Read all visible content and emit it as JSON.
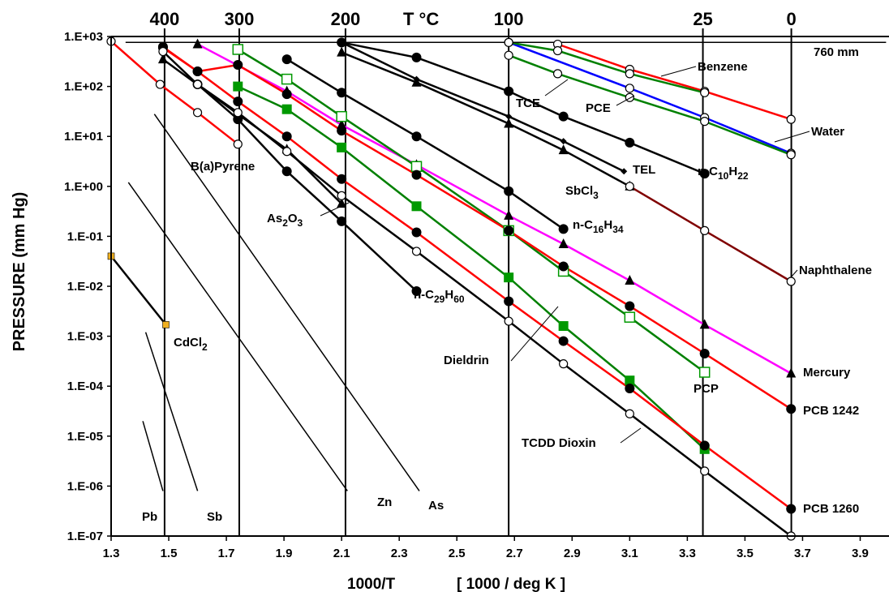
{
  "chart_data": {
    "type": "line",
    "x_ticks": [
      "1.3",
      "1.5",
      "1.7",
      "1.9",
      "2.1",
      "2.3",
      "2.5",
      "2.7",
      "2.9",
      "3.1",
      "3.3",
      "3.5",
      "3.7",
      "3.9"
    ],
    "y_ticks": [
      "1.E+03",
      "1.E+02",
      "1.E+01",
      "1.E+00",
      "1.E-01",
      "1.E-02",
      "1.E-03",
      "1.E-04",
      "1.E-05",
      "1.E-06",
      "1.E-07"
    ],
    "top_ticks": [
      "400",
      "300",
      "200",
      "100",
      "25",
      "0"
    ],
    "top_axis_title": "T °C",
    "xlabel_left": "1000/T",
    "xlabel_right": "[ 1000 / deg K ]",
    "ylabel": "PRESSURE (mm Hg)",
    "xlim": [
      1.3,
      4.0
    ],
    "ylim_log10": [
      -7,
      3
    ],
    "annotations": {
      "760mm": "760 mm",
      "benzene": "Benzene",
      "tce": "TCE",
      "pce": "PCE",
      "water": "Water",
      "tel": "TEL",
      "sbcl3_main": "SbCl",
      "sbcl3_sub": "3",
      "nc10_main": "n-C",
      "nc10_sub1": "10",
      "nc10_h": "H",
      "nc10_sub2": "22",
      "nc16_main": "n-C",
      "nc16_sub1": "16",
      "nc16_h": "H",
      "nc16_sub2": "34",
      "nc29_main": "n-C",
      "nc29_sub1": "29",
      "nc29_h": "H",
      "nc29_sub2": "60",
      "bapyrene": "B(a)Pyrene",
      "as2o3_a": "As",
      "as2o3_sub1": "2",
      "as2o3_b": "O",
      "as2o3_sub2": "3",
      "naphthalene": "Naphthalene",
      "mercury": "Mercury",
      "pcp": "PCP",
      "pcb1242": "PCB 1242",
      "pcb1260": "PCB 1260",
      "dieldrin": "Dieldrin",
      "tcdd": "TCDD Dioxin",
      "cdcl2_main": "CdCl",
      "cdcl2_sub": "2",
      "pb": "Pb",
      "sb": "Sb",
      "zn": "Zn",
      "as": "As"
    },
    "series": [
      {
        "name": "Benzene",
        "color": "#ff0000",
        "marker": "circle-open",
        "x": [
          2.85,
          3.1,
          3.36,
          3.66
        ],
        "y": [
          700,
          220,
          80,
          22
        ]
      },
      {
        "name": "Water",
        "color": "#0000ff",
        "marker": "circle-open",
        "x": [
          2.68,
          3.1,
          3.36,
          3.66
        ],
        "y": [
          760,
          92,
          23.8,
          4.6
        ]
      },
      {
        "name": "TCE",
        "color": "#008000",
        "marker": "circle-open",
        "x": [
          2.68,
          2.85,
          3.1,
          3.36,
          3.66
        ],
        "y": [
          420,
          180,
          60,
          20,
          4.3
        ]
      },
      {
        "name": "PCE",
        "color": "#008000",
        "marker": "circle-open",
        "x": [
          2.68,
          2.85,
          3.1,
          3.36
        ],
        "y": [
          760,
          520,
          180,
          75
        ]
      },
      {
        "name": "n-C10H22",
        "color": "#000000",
        "marker": "circle-filled",
        "x": [
          2.1,
          2.36,
          2.68,
          2.87,
          3.1,
          3.36
        ],
        "y": [
          760,
          380,
          80,
          25,
          7.5,
          1.8
        ]
      },
      {
        "name": "TEL",
        "color": "#000000",
        "marker": "diamond-filled",
        "x": [
          2.1,
          2.36,
          2.68,
          2.87,
          3.08
        ],
        "y": [
          760,
          140,
          25,
          8,
          2
        ]
      },
      {
        "name": "SbCl3",
        "color": "#000000",
        "marker": "triangle-filled",
        "x": [
          2.1,
          2.36,
          2.68,
          2.87,
          3.1
        ],
        "y": [
          480,
          120,
          18,
          5.3,
          1
        ]
      },
      {
        "name": "Naphthalene",
        "color": "#800000",
        "marker": "circle-open",
        "x": [
          3.1,
          3.36,
          3.66
        ],
        "y": [
          1,
          0.13,
          0.0125
        ]
      },
      {
        "name": "n-C16H34",
        "color": "#000000",
        "marker": "circle-filled",
        "x": [
          1.91,
          2.1,
          2.36,
          2.68,
          2.87
        ],
        "y": [
          350,
          75,
          10,
          0.8,
          0.14
        ]
      },
      {
        "name": "Mercury",
        "color": "#ff00ff",
        "marker": "triangle-filled",
        "x": [
          1.6,
          1.91,
          2.1,
          2.36,
          2.68,
          2.87,
          3.1,
          3.36,
          3.66
        ],
        "y": [
          700,
          80,
          17,
          2.7,
          0.26,
          0.07,
          0.013,
          0.0017,
          0.00018
        ]
      },
      {
        "name": "B(a)Pyrene",
        "color": "#ff0000",
        "marker": "circle-open",
        "x": [
          1.3,
          1.47,
          1.6,
          1.74
        ],
        "y": [
          800,
          110,
          30,
          7
        ]
      },
      {
        "name": "As2O3",
        "color": "#000000",
        "marker": "triangle-filled",
        "x": [
          1.48,
          1.74,
          1.91,
          2.1
        ],
        "y": [
          350,
          28,
          5.5,
          0.45
        ]
      },
      {
        "name": "n-C29H60",
        "color": "#000000",
        "marker": "circle-filled",
        "x": [
          1.6,
          1.74,
          1.91,
          2.1,
          2.36
        ],
        "y": [
          110,
          22,
          2,
          0.2,
          0.008
        ]
      },
      {
        "name": "Dieldrin",
        "color": "#008000",
        "marker": "square-filled",
        "x": [
          1.74,
          1.91,
          2.1,
          2.36,
          2.68,
          2.87,
          3.1,
          3.36
        ],
        "y": [
          100,
          35,
          6,
          0.4,
          0.015,
          0.0016,
          0.00013,
          5.5e-06
        ]
      },
      {
        "name": "PCP",
        "color": "#008000",
        "marker": "square-open",
        "x": [
          1.74,
          1.91,
          2.1,
          2.36,
          2.68,
          2.87,
          3.1,
          3.36
        ],
        "y": [
          550,
          140,
          25,
          2.5,
          0.13,
          0.02,
          0.0024,
          0.00019
        ]
      },
      {
        "name": "PCB 1242",
        "color": "#ff0000",
        "marker": "circle-filled",
        "x": [
          1.48,
          1.6,
          1.74,
          1.91,
          2.1,
          2.36,
          2.68,
          2.87,
          3.1,
          3.36,
          3.66
        ],
        "y": [
          600,
          200,
          50,
          10,
          1.4,
          0.12,
          0.005,
          0.0008,
          9e-05,
          6.5e-06,
          3.5e-07
        ]
      },
      {
        "name": "PCB 1260",
        "color": "#ff0000",
        "marker": "circle-filled",
        "x": [
          1.48,
          1.6,
          1.74,
          1.91,
          2.1,
          2.36,
          2.68,
          2.87,
          3.1,
          3.36,
          3.66
        ],
        "y": [
          620,
          200,
          270,
          70,
          13,
          1.7,
          0.13,
          0.025,
          0.004,
          0.00045,
          3.5e-05
        ]
      },
      {
        "name": "TCDD Dioxin",
        "color": "#000000",
        "marker": "circle-open",
        "x": [
          1.48,
          1.6,
          1.74,
          1.91,
          2.1,
          2.36,
          2.68,
          2.87,
          3.1,
          3.36,
          3.66
        ],
        "y": [
          500,
          110,
          30,
          5,
          0.65,
          0.05,
          0.002,
          0.00028,
          2.8e-05,
          2e-06,
          1e-07
        ]
      },
      {
        "name": "CdCl2",
        "color": "#000000",
        "marker": "square-small",
        "x": [
          1.3,
          1.49
        ],
        "y": [
          0.04,
          0.0017
        ]
      },
      {
        "name": "Pb",
        "color": "#000000",
        "marker": "none",
        "x": [
          1.41,
          1.48
        ],
        "y": [
          2e-05,
          8e-07
        ]
      },
      {
        "name": "Sb",
        "color": "#000000",
        "marker": "none",
        "x": [
          1.42,
          1.6
        ],
        "y": [
          0.0012,
          8e-07
        ]
      },
      {
        "name": "Zn",
        "color": "#000000",
        "marker": "none",
        "x": [
          1.36,
          2.12
        ],
        "y": [
          1.2,
          8e-07
        ]
      },
      {
        "name": "As",
        "color": "#000000",
        "marker": "none",
        "x": [
          1.45,
          2.37
        ],
        "y": [
          28,
          8e-07
        ]
      },
      {
        "name": "760 mm",
        "color": "#000000",
        "marker": "none",
        "x": [
          1.35,
          3.99
        ],
        "y": [
          760,
          760
        ]
      }
    ]
  }
}
